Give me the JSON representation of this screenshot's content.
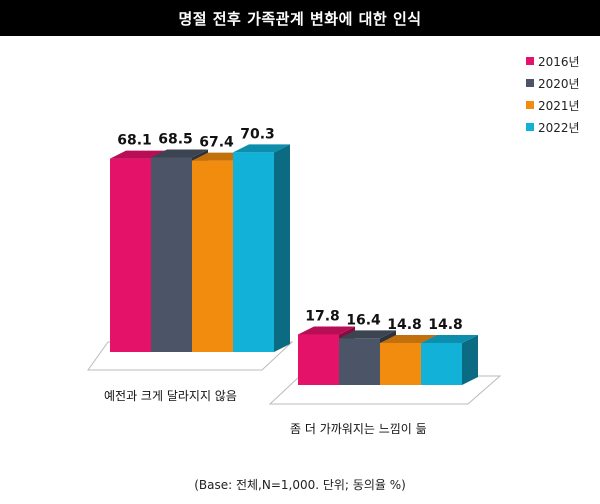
{
  "title": "명절 전후 가족관계 변화에 대한 인식",
  "footnote": "(Base: 전체,N=1,000. 단위; 동의율 %)",
  "chart_data": {
    "type": "bar",
    "categories": [
      "예전과 크게 달라지지 않음",
      "좀 더 가까워지는 느낌이 듦"
    ],
    "series": [
      {
        "name": "2016년",
        "values": [
          68.1,
          17.8
        ],
        "color": "#e5126a"
      },
      {
        "name": "2020년",
        "values": [
          68.5,
          16.4
        ],
        "color": "#4b5567"
      },
      {
        "name": "2021년",
        "values": [
          67.4,
          14.8
        ],
        "color": "#f28c0f"
      },
      {
        "name": "2022년",
        "values": [
          70.3,
          14.8
        ],
        "color": "#12b2d8"
      }
    ],
    "ylim": [
      0,
      100
    ],
    "legend": "top-right",
    "grid": false
  }
}
